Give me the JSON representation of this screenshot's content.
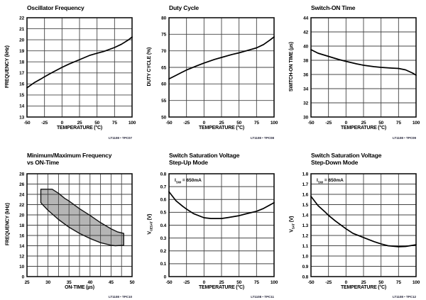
{
  "chart_data": [
    {
      "type": "line",
      "title": "Oscillator Frequency",
      "xlabel": "TEMPERATURE (°C)",
      "ylabel": {
        "pre": "FREQUENCY (kHz)",
        "sub": "",
        "post": ""
      },
      "xticks": [
        "-50",
        "-25",
        "0",
        "25",
        "50",
        "75",
        "100"
      ],
      "yticks": [
        "13",
        "14",
        "15",
        "16",
        "17",
        "18",
        "19",
        "20",
        "21",
        "22"
      ],
      "xlim": [
        -50,
        100
      ],
      "ylim": [
        13,
        22
      ],
      "grid": "on",
      "caption": "LT1108 • TPC07",
      "series": [
        {
          "name": "oscillator-frequency",
          "points": [
            [
              -50,
              15.65
            ],
            [
              -40,
              16.1
            ],
            [
              -30,
              16.45
            ],
            [
              -25,
              16.65
            ],
            [
              -15,
              17.0
            ],
            [
              0,
              17.5
            ],
            [
              10,
              17.8
            ],
            [
              25,
              18.2
            ],
            [
              40,
              18.6
            ],
            [
              50,
              18.78
            ],
            [
              60,
              18.95
            ],
            [
              75,
              19.3
            ],
            [
              85,
              19.6
            ],
            [
              95,
              20.0
            ],
            [
              100,
              20.25
            ]
          ]
        }
      ]
    },
    {
      "type": "line",
      "title": "Duty Cycle",
      "xlabel": "TEMPERATURE (°C)",
      "ylabel": {
        "pre": "DUTY CYCLE (%)",
        "sub": "",
        "post": ""
      },
      "xticks": [
        "-50",
        "-25",
        "0",
        "25",
        "50",
        "75",
        "100"
      ],
      "yticks": [
        "50",
        "55",
        "60",
        "65",
        "70",
        "75",
        "80"
      ],
      "xlim": [
        -50,
        100
      ],
      "ylim": [
        50,
        80
      ],
      "grid": "on",
      "caption": "LT1108 • TPC08",
      "series": [
        {
          "name": "duty-cycle",
          "points": [
            [
              -50,
              61.5
            ],
            [
              -40,
              62.6
            ],
            [
              -25,
              64.2
            ],
            [
              -10,
              65.5
            ],
            [
              0,
              66.3
            ],
            [
              15,
              67.4
            ],
            [
              25,
              68.0
            ],
            [
              40,
              68.9
            ],
            [
              50,
              69.4
            ],
            [
              65,
              70.3
            ],
            [
              75,
              70.9
            ],
            [
              85,
              71.9
            ],
            [
              95,
              73.4
            ],
            [
              100,
              74.2
            ]
          ]
        }
      ]
    },
    {
      "type": "line",
      "title": "Switch-ON Time",
      "xlabel": "TEMPERATURE (°C)",
      "ylabel": {
        "pre": "SWITCH-ON TIME (µs)",
        "sub": "",
        "post": ""
      },
      "xticks": [
        "-50",
        "-25",
        "0",
        "25",
        "50",
        "75",
        "100"
      ],
      "yticks": [
        "30",
        "32",
        "34",
        "36",
        "38",
        "40",
        "42",
        "44"
      ],
      "xlim": [
        -50,
        100
      ],
      "ylim": [
        30,
        44
      ],
      "grid": "on",
      "caption": "LT1108 • TPC09",
      "series": [
        {
          "name": "switch-on-time",
          "points": [
            [
              -50,
              39.5
            ],
            [
              -40,
              39.0
            ],
            [
              -25,
              38.55
            ],
            [
              -10,
              38.1
            ],
            [
              0,
              37.85
            ],
            [
              15,
              37.5
            ],
            [
              25,
              37.3
            ],
            [
              40,
              37.1
            ],
            [
              50,
              37.0
            ],
            [
              65,
              36.9
            ],
            [
              75,
              36.85
            ],
            [
              85,
              36.65
            ],
            [
              95,
              36.2
            ],
            [
              100,
              35.9
            ]
          ]
        }
      ]
    },
    {
      "type": "area",
      "title": "Minimum/Maximum Frequency\nvs ON-Time",
      "xlabel": "ON-TIME (µs)",
      "ylabel": {
        "pre": "FREQUENCY (kHz)",
        "sub": "",
        "post": ""
      },
      "xticks": [
        "25",
        "30",
        "35",
        "40",
        "45",
        "50"
      ],
      "xgrid": [
        25,
        27.5,
        30,
        32.5,
        35,
        37.5,
        40,
        42.5,
        45,
        47.5,
        50
      ],
      "yticks": [
        "0",
        "10",
        "12",
        "14",
        "16",
        "18",
        "20",
        "22",
        "24",
        "26",
        "28"
      ],
      "xlim": [
        25,
        50
      ],
      "ylim": [
        0,
        28
      ],
      "grid": "on",
      "caption": "LT1108 • TPC10",
      "polygon_fill": "#b5b5b5",
      "polygon": [
        [
          28.3,
          25
        ],
        [
          31,
          25
        ],
        [
          32.5,
          24.2
        ],
        [
          34,
          23.2
        ],
        [
          35,
          22.7
        ],
        [
          37.5,
          21.2
        ],
        [
          40,
          19.9
        ],
        [
          42.5,
          18.5
        ],
        [
          45,
          17.3
        ],
        [
          46.5,
          16.7
        ],
        [
          48,
          16.4
        ],
        [
          48,
          14.1
        ],
        [
          46,
          14.0
        ],
        [
          45,
          14.1
        ],
        [
          42.5,
          14.6
        ],
        [
          40,
          15.4
        ],
        [
          37.5,
          16.4
        ],
        [
          35,
          17.6
        ],
        [
          32.5,
          19.1
        ],
        [
          30,
          20.9
        ],
        [
          28.6,
          22.1
        ],
        [
          28.3,
          22.4
        ]
      ],
      "series": []
    },
    {
      "type": "line",
      "title": "Switch Saturation Voltage\nStep-Up Mode",
      "xlabel": "TEMPERATURE (°C)",
      "ylabel": {
        "pre": "V",
        "sub": "CESAT",
        "post": " (V)"
      },
      "annotation": {
        "pre": "I",
        "sub": "SW",
        "post": " = 650mA"
      },
      "xticks": [
        "-50",
        "-25",
        "0",
        "25",
        "50",
        "75",
        "100"
      ],
      "yticks": [
        "0",
        "0.1",
        "0.2",
        "0.3",
        "0.4",
        "0.5",
        "0.6",
        "0.7",
        "0.8"
      ],
      "xlim": [
        -50,
        100
      ],
      "ylim": [
        0,
        0.8
      ],
      "grid": "on",
      "caption": "LT1108 • TPC11",
      "series": [
        {
          "name": "vcesat-step-up",
          "points": [
            [
              -50,
              0.66
            ],
            [
              -40,
              0.59
            ],
            [
              -30,
              0.545
            ],
            [
              -25,
              0.525
            ],
            [
              -15,
              0.49
            ],
            [
              0,
              0.458
            ],
            [
              10,
              0.452
            ],
            [
              25,
              0.452
            ],
            [
              35,
              0.46
            ],
            [
              50,
              0.474
            ],
            [
              60,
              0.488
            ],
            [
              75,
              0.508
            ],
            [
              85,
              0.53
            ],
            [
              100,
              0.575
            ]
          ]
        }
      ]
    },
    {
      "type": "line",
      "title": "Switch Saturation Voltage\nStep-Down Mode",
      "xlabel": "TEMPERATURE (°C)",
      "ylabel": {
        "pre": "V",
        "sub": "SAT",
        "post": " (V)"
      },
      "annotation": {
        "pre": "I",
        "sub": "SW",
        "post": " = 650mA"
      },
      "xticks": [
        "-50",
        "-25",
        "0",
        "25",
        "50",
        "75",
        "100"
      ],
      "yticks": [
        "0.8",
        "0.9",
        "1.0",
        "1.1",
        "1.2",
        "1.3",
        "1.4",
        "1.5",
        "1.6",
        "1.7",
        "1.8"
      ],
      "xlim": [
        -50,
        100
      ],
      "ylim": [
        0.8,
        1.8
      ],
      "grid": "on",
      "caption": "LT1108 • TPC12",
      "series": [
        {
          "name": "vsat-step-down",
          "points": [
            [
              -50,
              1.58
            ],
            [
              -40,
              1.49
            ],
            [
              -30,
              1.43
            ],
            [
              -25,
              1.395
            ],
            [
              -15,
              1.34
            ],
            [
              0,
              1.265
            ],
            [
              10,
              1.22
            ],
            [
              25,
              1.18
            ],
            [
              40,
              1.14
            ],
            [
              50,
              1.118
            ],
            [
              60,
              1.1
            ],
            [
              75,
              1.09
            ],
            [
              85,
              1.093
            ],
            [
              100,
              1.11
            ]
          ]
        }
      ]
    }
  ],
  "colors": {
    "curve": "#000000",
    "grid": "#444444",
    "border": "#111111",
    "band_fill": "#b5b5b5",
    "text": "#000000"
  }
}
